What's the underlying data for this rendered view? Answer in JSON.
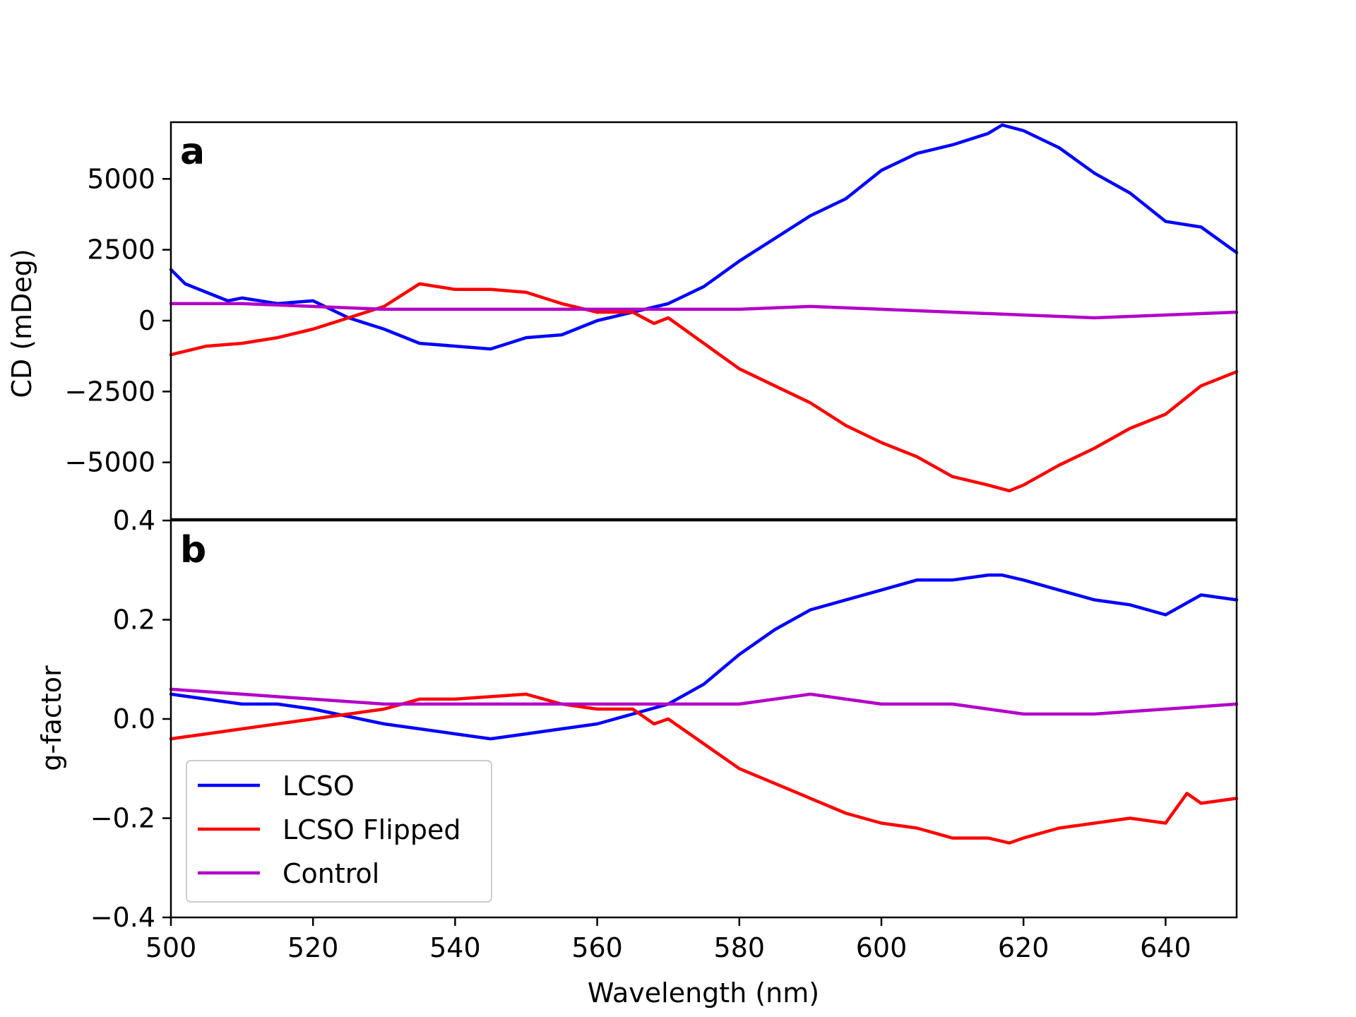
{
  "chart_data": [
    {
      "panel": "a",
      "type": "line",
      "xlabel": "",
      "ylabel": "CD (mDeg)",
      "xlim": [
        500,
        650
      ],
      "ylim": [
        -7000,
        7000
      ],
      "yticks": [
        5000,
        2500,
        0,
        -2500,
        -5000
      ],
      "ytick_labels": [
        "5000",
        "2500",
        "0",
        "−2500",
        "−5000"
      ],
      "grid": false,
      "series": [
        {
          "name": "LCSO",
          "color": "#0000ff",
          "x": [
            500,
            502,
            505,
            508,
            510,
            515,
            520,
            525,
            530,
            535,
            540,
            545,
            550,
            555,
            560,
            565,
            570,
            575,
            580,
            585,
            590,
            595,
            600,
            605,
            610,
            615,
            617,
            620,
            625,
            630,
            635,
            640,
            645,
            650
          ],
          "y": [
            1800,
            1300,
            1000,
            700,
            800,
            600,
            700,
            100,
            -300,
            -800,
            -900,
            -1000,
            -600,
            -500,
            0,
            300,
            600,
            1200,
            2100,
            2900,
            3700,
            4300,
            5300,
            5900,
            6200,
            6600,
            6900,
            6700,
            6100,
            5200,
            4500,
            3500,
            3300,
            2400
          ]
        },
        {
          "name": "LCSO Flipped",
          "color": "#ff0000",
          "x": [
            500,
            505,
            510,
            515,
            520,
            525,
            530,
            535,
            540,
            545,
            550,
            555,
            560,
            565,
            568,
            570,
            575,
            580,
            585,
            590,
            595,
            600,
            605,
            610,
            615,
            618,
            620,
            625,
            630,
            635,
            640,
            645,
            650
          ],
          "y": [
            -1200,
            -900,
            -800,
            -600,
            -300,
            100,
            500,
            1300,
            1100,
            1100,
            1000,
            600,
            300,
            300,
            -100,
            100,
            -800,
            -1700,
            -2300,
            -2900,
            -3700,
            -4300,
            -4800,
            -5500,
            -5800,
            -6000,
            -5800,
            -5100,
            -4500,
            -3800,
            -3300,
            -2300,
            -1800
          ]
        },
        {
          "name": "Control",
          "color": "#b300c8",
          "x": [
            500,
            510,
            520,
            530,
            540,
            550,
            560,
            570,
            580,
            590,
            600,
            610,
            620,
            630,
            640,
            650
          ],
          "y": [
            600,
            600,
            500,
            400,
            400,
            400,
            400,
            400,
            400,
            500,
            400,
            300,
            200,
            100,
            200,
            300
          ]
        }
      ]
    },
    {
      "panel": "b",
      "type": "line",
      "xlabel": "Wavelength (nm)",
      "ylabel": "g-factor",
      "xlim": [
        500,
        650
      ],
      "ylim": [
        -0.4,
        0.4
      ],
      "xticks": [
        500,
        520,
        540,
        560,
        580,
        600,
        620,
        640
      ],
      "xtick_labels": [
        "500",
        "520",
        "540",
        "560",
        "580",
        "600",
        "620",
        "640"
      ],
      "yticks": [
        0.4,
        0.2,
        0.0,
        -0.2,
        -0.4
      ],
      "ytick_labels": [
        "0.4",
        "0.2",
        "0.0",
        "−0.2",
        "−0.4"
      ],
      "grid": false,
      "legend_position": "lower-left",
      "series": [
        {
          "name": "LCSO",
          "color": "#0000ff",
          "x": [
            500,
            505,
            510,
            515,
            520,
            525,
            530,
            535,
            540,
            545,
            550,
            555,
            560,
            565,
            570,
            575,
            580,
            585,
            590,
            595,
            600,
            605,
            610,
            615,
            617,
            620,
            625,
            630,
            635,
            640,
            645,
            650
          ],
          "y": [
            0.05,
            0.04,
            0.03,
            0.03,
            0.02,
            0.005,
            -0.01,
            -0.02,
            -0.03,
            -0.04,
            -0.03,
            -0.02,
            -0.01,
            0.01,
            0.03,
            0.07,
            0.13,
            0.18,
            0.22,
            0.24,
            0.26,
            0.28,
            0.28,
            0.29,
            0.29,
            0.28,
            0.26,
            0.24,
            0.23,
            0.21,
            0.25,
            0.24
          ]
        },
        {
          "name": "LCSO Flipped",
          "color": "#ff0000",
          "x": [
            500,
            505,
            510,
            515,
            520,
            525,
            530,
            535,
            540,
            545,
            550,
            555,
            560,
            565,
            568,
            570,
            575,
            580,
            585,
            590,
            595,
            600,
            605,
            610,
            615,
            618,
            620,
            625,
            630,
            635,
            640,
            643,
            645,
            650
          ],
          "y": [
            -0.04,
            -0.03,
            -0.02,
            -0.01,
            0.0,
            0.01,
            0.02,
            0.04,
            0.04,
            0.045,
            0.05,
            0.03,
            0.02,
            0.02,
            -0.01,
            0.0,
            -0.05,
            -0.1,
            -0.13,
            -0.16,
            -0.19,
            -0.21,
            -0.22,
            -0.24,
            -0.24,
            -0.25,
            -0.24,
            -0.22,
            -0.21,
            -0.2,
            -0.21,
            -0.15,
            -0.17,
            -0.16
          ]
        },
        {
          "name": "Control",
          "color": "#b300c8",
          "x": [
            500,
            510,
            520,
            530,
            540,
            550,
            560,
            570,
            580,
            590,
            600,
            610,
            620,
            630,
            640,
            650
          ],
          "y": [
            0.06,
            0.05,
            0.04,
            0.03,
            0.03,
            0.03,
            0.03,
            0.03,
            0.03,
            0.05,
            0.03,
            0.03,
            0.01,
            0.01,
            0.02,
            0.03
          ]
        }
      ]
    }
  ],
  "legend": {
    "items": [
      "LCSO",
      "LCSO Flipped",
      "Control"
    ]
  }
}
